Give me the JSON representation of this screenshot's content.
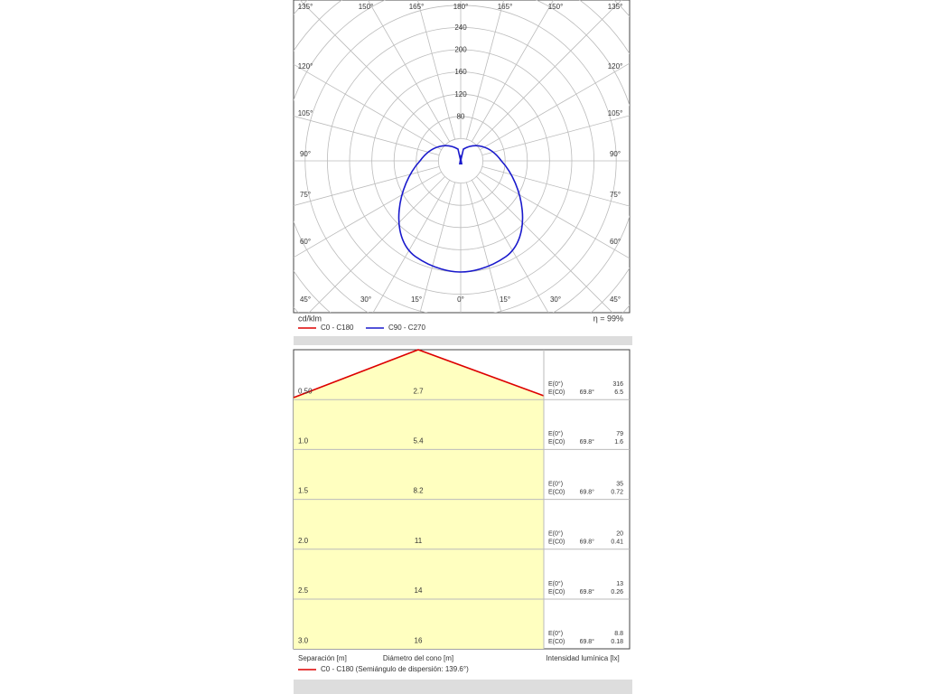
{
  "polar": {
    "top_labels": [
      "135°",
      "150°",
      "165°",
      "180°",
      "165°",
      "150°",
      "135°"
    ],
    "side_labels": [
      "120°",
      "105°",
      "90°",
      "75°",
      "60°"
    ],
    "bottom_labels": [
      "45°",
      "30°",
      "15°",
      "0°",
      "15°",
      "30°",
      "45°"
    ],
    "radial_labels": [
      "240",
      "200",
      "160",
      "120",
      "80"
    ],
    "unit": "cd/klm",
    "efficiency": "η = 99%",
    "legend": [
      "C0 - C180",
      "C90 - C270"
    ]
  },
  "cone": {
    "rows": [
      {
        "height": "0.50",
        "diameter": "2.7",
        "e0_label": "E(0°)",
        "e0": "316",
        "ec0_label": "E(C0)",
        "angle": "69.8°",
        "ec0": "6.5"
      },
      {
        "height": "1.0",
        "diameter": "5.4",
        "e0_label": "E(0°)",
        "e0": "79",
        "ec0_label": "E(C0)",
        "angle": "69.8°",
        "ec0": "1.6"
      },
      {
        "height": "1.5",
        "diameter": "8.2",
        "e0_label": "E(0°)",
        "e0": "35",
        "ec0_label": "E(C0)",
        "angle": "69.8°",
        "ec0": "0.72"
      },
      {
        "height": "2.0",
        "diameter": "11",
        "e0_label": "E(0°)",
        "e0": "20",
        "ec0_label": "E(C0)",
        "angle": "69.8°",
        "ec0": "0.41"
      },
      {
        "height": "2.5",
        "diameter": "14",
        "e0_label": "E(0°)",
        "e0": "13",
        "ec0_label": "E(C0)",
        "angle": "69.8°",
        "ec0": "0.26"
      },
      {
        "height": "3.0",
        "diameter": "16",
        "e0_label": "E(0°)",
        "e0": "8.8",
        "ec0_label": "E(C0)",
        "angle": "69.8°",
        "ec0": "0.18"
      }
    ],
    "footer": [
      "Separación [m]",
      "Diámetro del cono [m]",
      "Intensidad lumínica [lx]"
    ],
    "legend": "C0 - C180 (Semiángulo de dispersión: 139.6°)"
  }
}
